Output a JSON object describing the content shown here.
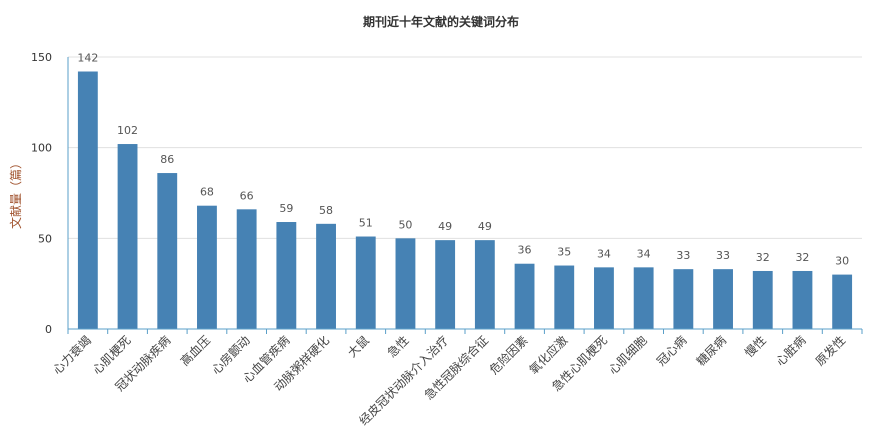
{
  "chart_data": {
    "type": "bar",
    "title": "期刊近十年文献的关键词分布",
    "xlabel": "",
    "ylabel": "文献量（篇）",
    "ylim": [
      0,
      150
    ],
    "yticks": [
      0,
      50,
      100,
      150
    ],
    "grid": true,
    "legend": "none",
    "colors": {
      "bar": "#4682b4",
      "axis": "#5a9fc8",
      "grid": "#e0e0e0"
    },
    "categories": [
      "心力衰竭",
      "心肌梗死",
      "冠状动脉疾病",
      "高血压",
      "心房颤动",
      "心血管疾病",
      "动脉粥样硬化",
      "大鼠",
      "急性",
      "经皮冠状动脉介入治疗",
      "急性冠脉综合征",
      "危险因素",
      "氧化应激",
      "急性心肌梗死",
      "心肌细胞",
      "冠心病",
      "糖尿病",
      "慢性",
      "心脏病",
      "原发性"
    ],
    "values": [
      142,
      102,
      86,
      68,
      66,
      59,
      58,
      51,
      50,
      49,
      49,
      36,
      35,
      34,
      34,
      33,
      33,
      32,
      32,
      30
    ]
  }
}
